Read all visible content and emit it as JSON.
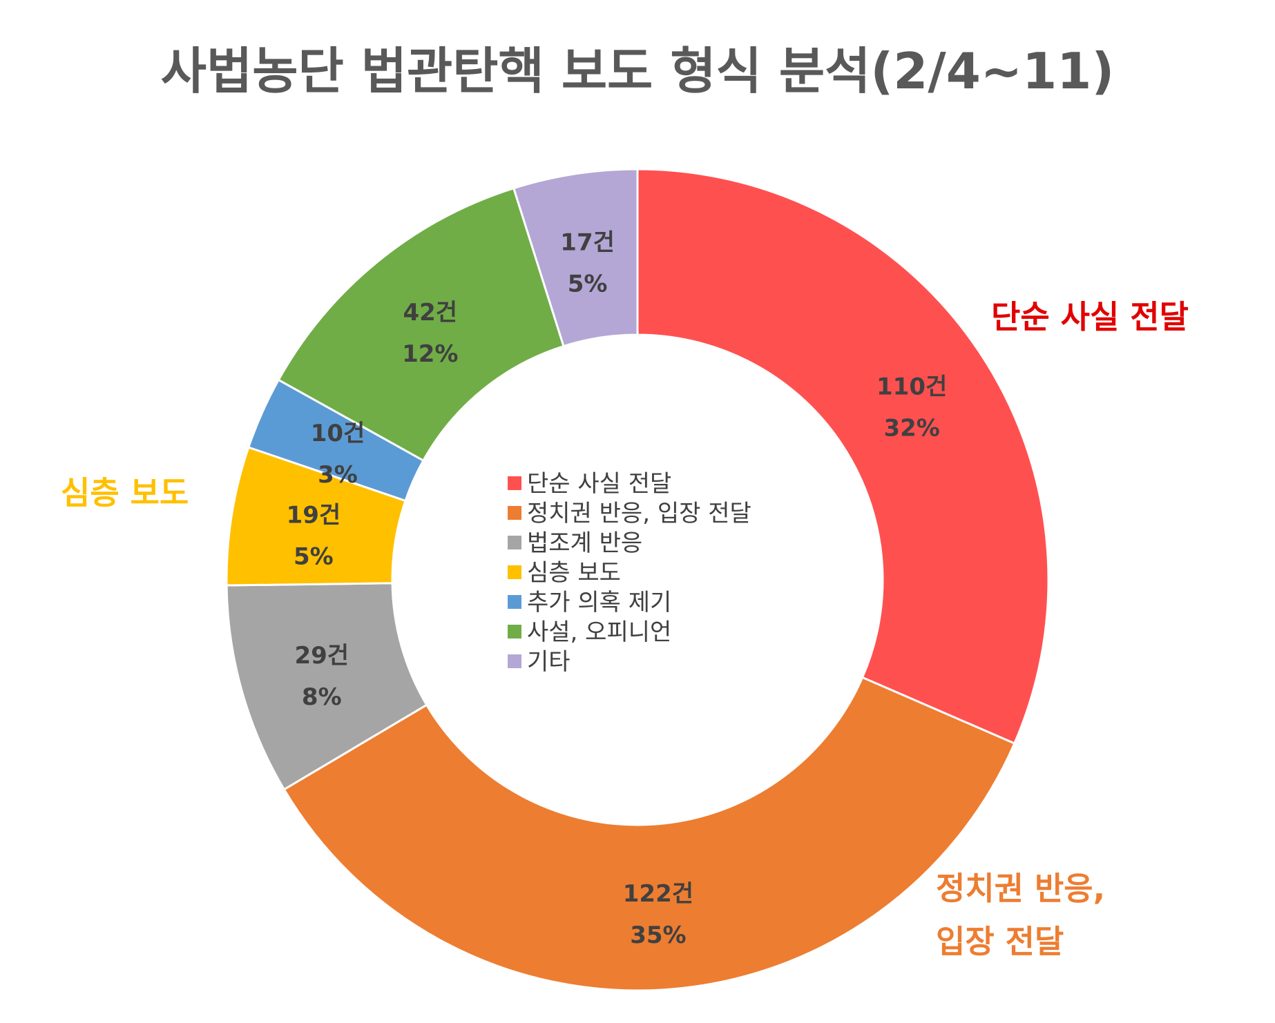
{
  "chart_data": {
    "type": "pie",
    "donut": true,
    "title": "사법농단 법관탄핵 보도 형식 분석(2/4~11)",
    "unit": "건",
    "legend_position": "center",
    "slices": [
      {
        "label": "단순 사실 전달",
        "value": 110,
        "count_text": "110건",
        "percent_text": "32%",
        "color": "#ff5050"
      },
      {
        "label": "정치권 반응, 입장 전달",
        "value": 122,
        "count_text": "122건",
        "percent_text": "35%",
        "color": "#ed7d31"
      },
      {
        "label": "법조계 반응",
        "value": 29,
        "count_text": "29건",
        "percent_text": "8%",
        "color": "#a5a5a5"
      },
      {
        "label": "심층 보도",
        "value": 19,
        "count_text": "19건",
        "percent_text": "5%",
        "color": "#ffc000"
      },
      {
        "label": "추가 의혹 제기",
        "value": 10,
        "count_text": "10건",
        "percent_text": "3%",
        "color": "#5b9bd5"
      },
      {
        "label": "사설, 오피니언",
        "value": 42,
        "count_text": "42건",
        "percent_text": "12%",
        "color": "#70ad47"
      },
      {
        "label": "기타",
        "value": 17,
        "count_text": "17건",
        "percent_text": "5%",
        "color": "#b4a7d6"
      }
    ],
    "callouts": [
      {
        "lines": [
          "단순 사실 전달"
        ],
        "color": "#e00000"
      },
      {
        "lines": [
          "정치권 반응,",
          "입장 전달"
        ],
        "color": "#ed7d31"
      },
      {
        "lines": [
          "심층 보도"
        ],
        "color": "#ffc000"
      }
    ]
  }
}
